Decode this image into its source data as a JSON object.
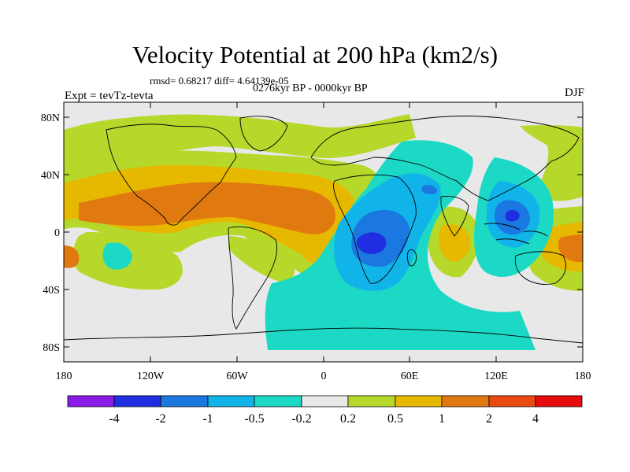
{
  "title": "Velocity Potential at 200 hPa (km2/s)",
  "stats_line": "rmsd= 0.68217 diff= 4.64139e-05",
  "period_line": "0276kyr BP - 0000kyr BP",
  "left_string": "Expt = tevTz-tevta",
  "right_string": "DJF",
  "lat_ticks": [
    "80N",
    "40N",
    "0",
    "40S",
    "80S"
  ],
  "lon_ticks": [
    "180",
    "120W",
    "60W",
    "0",
    "60E",
    "120E",
    "180"
  ],
  "colorbar": {
    "labels": [
      "-4",
      "-2",
      "-1",
      "-0.5",
      "-0.2",
      "0.2",
      "0.5",
      "1",
      "2",
      "4"
    ],
    "colors": [
      "#8a1be6",
      "#1f2ee0",
      "#1a78e0",
      "#10b4e8",
      "#1cd9c6",
      "#e8e8e8",
      "#b6d82a",
      "#e6b800",
      "#e07a10",
      "#e84a10",
      "#e60c0c"
    ]
  },
  "level_colors": {
    "neutral": "#e8e8e8",
    "pos_02": "#b6d82a",
    "pos_05": "#e6b800",
    "pos_1": "#e07a10",
    "neg_02": "#1cd9c6",
    "neg_05": "#10b4e8",
    "neg_1": "#1a78e0",
    "neg_2": "#1f2ee0"
  }
}
